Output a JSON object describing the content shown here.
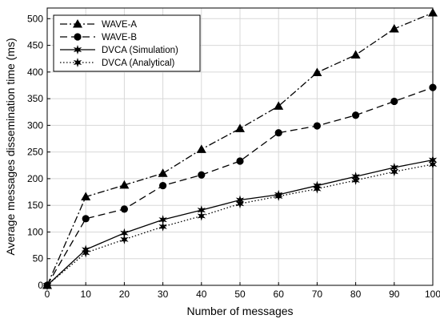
{
  "chart_data": {
    "type": "line",
    "title": "",
    "xlabel": "Number of messages",
    "ylabel": "Average messages dissemination time (ms)",
    "xlim": [
      0,
      100
    ],
    "ylim": [
      0,
      520
    ],
    "x_ticks": [
      0,
      10,
      20,
      30,
      40,
      50,
      60,
      70,
      80,
      90,
      100
    ],
    "y_ticks": [
      0,
      50,
      100,
      150,
      200,
      250,
      300,
      350,
      400,
      450,
      500
    ],
    "grid": true,
    "legend_position": "top-left",
    "x": [
      0,
      10,
      20,
      30,
      40,
      50,
      60,
      70,
      80,
      90,
      100
    ],
    "series": [
      {
        "name": "WAVE-A",
        "line_style": "dash-dot",
        "marker": "triangle",
        "color": "#000000",
        "values": [
          0,
          166,
          188,
          210,
          255,
          294,
          336,
          399,
          432,
          481,
          511
        ]
      },
      {
        "name": "WAVE-B",
        "line_style": "dashed",
        "marker": "circle",
        "color": "#000000",
        "values": [
          0,
          125,
          143,
          187,
          207,
          233,
          286,
          299,
          319,
          345,
          371
        ]
      },
      {
        "name": "DVCA (Simulation)",
        "line_style": "solid",
        "marker": "star",
        "color": "#000000",
        "values": [
          0,
          67,
          98,
          123,
          141,
          160,
          170,
          187,
          204,
          221,
          235
        ]
      },
      {
        "name": "DVCA (Analytical)",
        "line_style": "dotted",
        "marker": "star",
        "color": "#000000",
        "values": [
          0,
          61,
          86,
          110,
          130,
          153,
          167,
          181,
          197,
          213,
          227
        ]
      }
    ]
  }
}
